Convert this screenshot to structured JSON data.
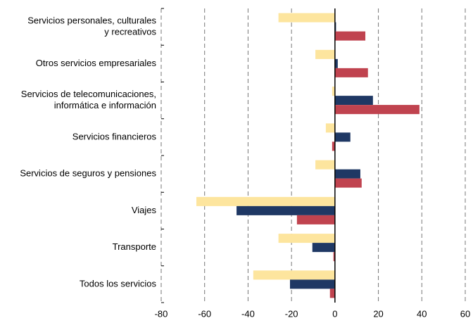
{
  "chart_data": {
    "type": "hbar",
    "categories": [
      [
        "Servicios personales, culturales",
        "y recreativos"
      ],
      [
        "Otros servicios empresariales"
      ],
      [
        "Servicios de telecomunicaciones,",
        "informática e información"
      ],
      [
        "Servicios financieros"
      ],
      [
        "Servicios de seguros y pensiones"
      ],
      [
        "Viajes"
      ],
      [
        "Transporte"
      ],
      [
        "Todos los servicios"
      ]
    ],
    "series": [
      {
        "color": "#fde59e",
        "values": [
          -26,
          -9,
          -1.3,
          -4.2,
          -9,
          -63.8,
          -26,
          -37.6
        ]
      },
      {
        "color": "#1f3864",
        "values": [
          0.5,
          1.3,
          17.5,
          7.1,
          11.7,
          -45.3,
          -10.4,
          -20.7
        ]
      },
      {
        "color": "#c0434f",
        "values": [
          14,
          15.2,
          38.9,
          -1.3,
          12.3,
          -17.5,
          -0.7,
          -2.3
        ]
      }
    ],
    "xlim": [
      -80,
      60
    ],
    "xticks": [
      -80,
      -60,
      -40,
      -20,
      0,
      20,
      40,
      60
    ],
    "grid": true
  }
}
